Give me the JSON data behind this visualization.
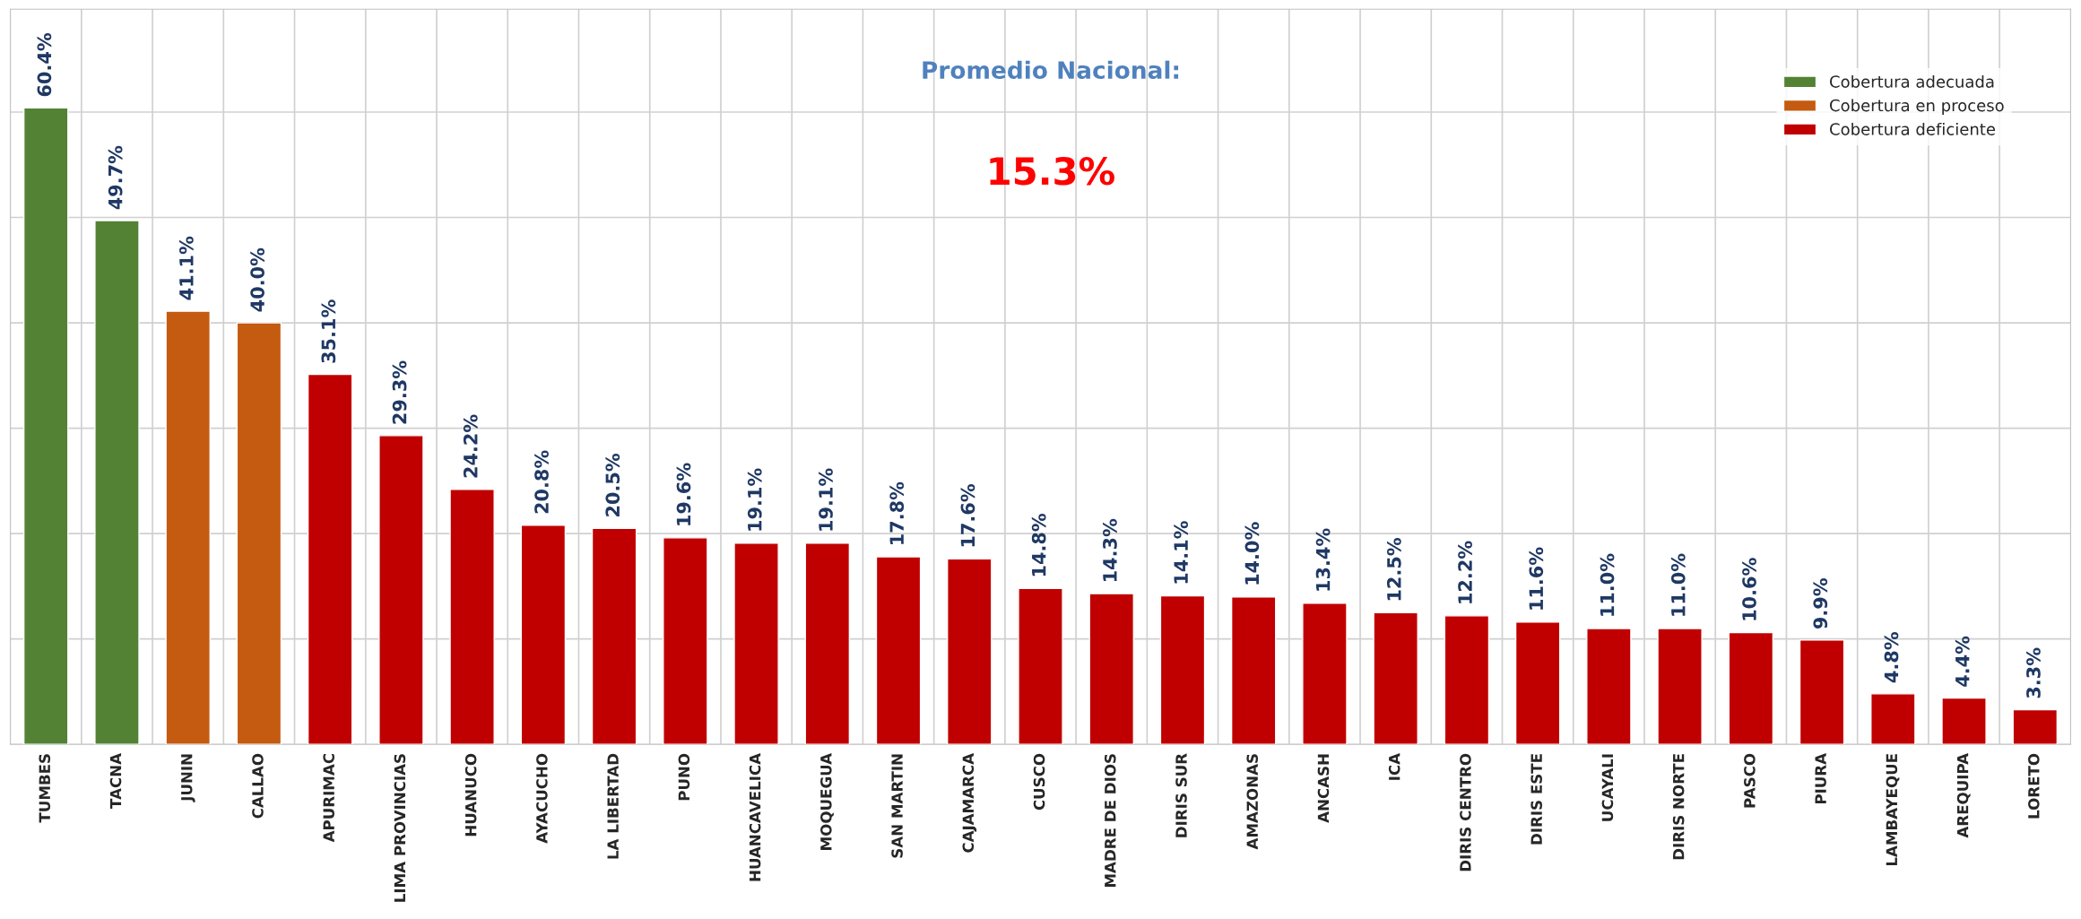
{
  "chart_data": {
    "type": "bar",
    "categories": [
      "TUMBES",
      "TACNA",
      "JUNIN",
      "CALLAO",
      "APURIMAC",
      "LIMA PROVINCIAS",
      "HUANUCO",
      "AYACUCHO",
      "LA LIBERTAD",
      "PUNO",
      "HUANCAVELICA",
      "MOQUEGUA",
      "SAN MARTIN",
      "CAJAMARCA",
      "CUSCO",
      "MADRE DE DIOS",
      "DIRIS SUR",
      "AMAZONAS",
      "ANCASH",
      "ICA",
      "DIRIS CENTRO",
      "DIRIS ESTE",
      "UCAYALI",
      "DIRIS NORTE",
      "PASCO",
      "PIURA",
      "LAMBAYEQUE",
      "AREQUIPA",
      "LORETO"
    ],
    "series": [
      {
        "name": "Cobertura adecuada",
        "color": "#548235",
        "values": [
          60.4,
          49.7,
          null,
          null,
          null,
          null,
          null,
          null,
          null,
          null,
          null,
          null,
          null,
          null,
          null,
          null,
          null,
          null,
          null,
          null,
          null,
          null,
          null,
          null,
          null,
          null,
          null,
          null,
          null
        ],
        "value_labels": [
          "60.4%",
          "49.7%",
          null,
          null,
          null,
          null,
          null,
          null,
          null,
          null,
          null,
          null,
          null,
          null,
          null,
          null,
          null,
          null,
          null,
          null,
          null,
          null,
          null,
          null,
          null,
          null,
          null,
          null,
          null
        ]
      },
      {
        "name": "Cobertura en proceso",
        "color": "#c55a11",
        "values": [
          null,
          null,
          41.1,
          40.0,
          null,
          null,
          null,
          null,
          null,
          null,
          null,
          null,
          null,
          null,
          null,
          null,
          null,
          null,
          null,
          null,
          null,
          null,
          null,
          null,
          null,
          null,
          null,
          null,
          null
        ],
        "value_labels": [
          null,
          null,
          "41.1%",
          "40.0%",
          null,
          null,
          null,
          null,
          null,
          null,
          null,
          null,
          null,
          null,
          null,
          null,
          null,
          null,
          null,
          null,
          null,
          null,
          null,
          null,
          null,
          null,
          null,
          null,
          null
        ]
      },
      {
        "name": "Cobertura deficiente",
        "color": "#c00000",
        "values": [
          null,
          null,
          null,
          null,
          35.1,
          29.3,
          24.2,
          20.8,
          20.5,
          19.6,
          19.1,
          19.1,
          17.8,
          17.6,
          14.8,
          14.3,
          14.1,
          14.0,
          13.4,
          12.5,
          12.2,
          11.6,
          11.0,
          11.0,
          10.6,
          9.9,
          4.8,
          4.4,
          3.3
        ],
        "value_labels": [
          null,
          null,
          null,
          null,
          "35.1%",
          "29.3%",
          "24.2%",
          "20.8%",
          "20.5%",
          "19.6%",
          "19.1%",
          "19.1%",
          "17.8%",
          "17.6%",
          "14.8%",
          "14.3%",
          "14.1%",
          "14.0%",
          "13.4%",
          "12.5%",
          "12.2%",
          "11.6%",
          "11.0%",
          "11.0%",
          "10.6%",
          "9.9%",
          "4.8%",
          "4.4%",
          "3.3%"
        ]
      }
    ],
    "annotations": [
      "Promedio Nacional:",
      "15.3%"
    ],
    "tick_labels": "x",
    "grid": true,
    "legend": "top right"
  }
}
